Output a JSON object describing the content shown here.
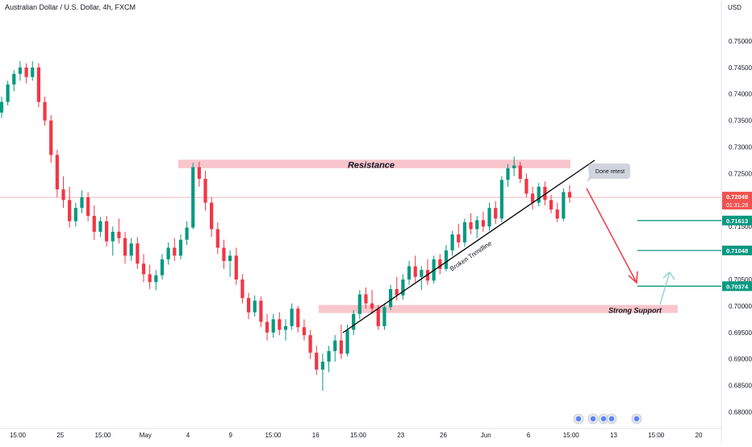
{
  "chart_data": {
    "type": "candlestick",
    "title": "Australian Dollar / U.S. Dollar, 4h, FXCM",
    "currency_label": "USD",
    "ylim": [
      0.6775,
      0.755
    ],
    "y_ticks": [
      0.75,
      0.745,
      0.74,
      0.735,
      0.73,
      0.725,
      0.72,
      0.715,
      0.71,
      0.705,
      0.7,
      0.695,
      0.69,
      0.685,
      0.68
    ],
    "y_tick_labels": [
      "0.75000",
      "0.74500",
      "0.74000",
      "0.73500",
      "0.73000",
      "0.72500",
      "0.72000",
      "0.71500",
      "0.71000",
      "0.70500",
      "0.70000",
      "0.69500",
      "0.69000",
      "0.68500",
      "0.68000"
    ],
    "x_tick_labels": [
      "15:00",
      "25",
      "15:00",
      "May",
      "4",
      "9",
      "15:00",
      "16",
      "15:00",
      "23",
      "26",
      "Jun",
      "6",
      "15:00",
      "13",
      "15:00",
      "20"
    ],
    "last_price": {
      "value": 0.72049,
      "label": "0.72049",
      "countdown": "01:31:28",
      "color": "#ef5350"
    },
    "price_levels": [
      {
        "value": 0.71613,
        "label": "0.71613",
        "color": "#089981"
      },
      {
        "value": 0.71048,
        "label": "0.71048",
        "color": "#089981"
      },
      {
        "value": 0.70374,
        "label": "0.70374",
        "color": "#089981"
      }
    ],
    "zones": [
      {
        "label": "Resistance",
        "low": 0.726,
        "high": 0.7276
      },
      {
        "label": "Strong Support",
        "low": 0.6988,
        "high": 0.7002
      }
    ],
    "trendline_label": "Broken Trendline",
    "callout_label": "Done retest",
    "up_color": "#089981",
    "down_color": "#f23645",
    "zone_color": "#f7bcc3",
    "ohlc": [
      {
        "o": 0.7365,
        "h": 0.7395,
        "l": 0.7355,
        "c": 0.7385
      },
      {
        "o": 0.7385,
        "h": 0.7425,
        "l": 0.7378,
        "c": 0.7418
      },
      {
        "o": 0.7418,
        "h": 0.7445,
        "l": 0.7405,
        "c": 0.7438
      },
      {
        "o": 0.7438,
        "h": 0.7462,
        "l": 0.7425,
        "c": 0.745
      },
      {
        "o": 0.745,
        "h": 0.7458,
        "l": 0.742,
        "c": 0.7432
      },
      {
        "o": 0.7432,
        "h": 0.7462,
        "l": 0.7425,
        "c": 0.745
      },
      {
        "o": 0.745,
        "h": 0.7458,
        "l": 0.7375,
        "c": 0.7385
      },
      {
        "o": 0.7385,
        "h": 0.7395,
        "l": 0.734,
        "c": 0.735
      },
      {
        "o": 0.735,
        "h": 0.736,
        "l": 0.727,
        "c": 0.7285
      },
      {
        "o": 0.7285,
        "h": 0.7295,
        "l": 0.7205,
        "c": 0.722
      },
      {
        "o": 0.722,
        "h": 0.7245,
        "l": 0.7185,
        "c": 0.72
      },
      {
        "o": 0.72,
        "h": 0.7225,
        "l": 0.7148,
        "c": 0.716
      },
      {
        "o": 0.716,
        "h": 0.7195,
        "l": 0.715,
        "c": 0.7185
      },
      {
        "o": 0.7185,
        "h": 0.7218,
        "l": 0.7175,
        "c": 0.7205
      },
      {
        "o": 0.7205,
        "h": 0.7215,
        "l": 0.716,
        "c": 0.717
      },
      {
        "o": 0.717,
        "h": 0.719,
        "l": 0.7125,
        "c": 0.714
      },
      {
        "o": 0.714,
        "h": 0.7168,
        "l": 0.713,
        "c": 0.716
      },
      {
        "o": 0.716,
        "h": 0.717,
        "l": 0.7112,
        "c": 0.7122
      },
      {
        "o": 0.7122,
        "h": 0.715,
        "l": 0.7095,
        "c": 0.714
      },
      {
        "o": 0.714,
        "h": 0.7165,
        "l": 0.7118,
        "c": 0.7128
      },
      {
        "o": 0.7128,
        "h": 0.714,
        "l": 0.708,
        "c": 0.7095
      },
      {
        "o": 0.7095,
        "h": 0.7128,
        "l": 0.7085,
        "c": 0.7118
      },
      {
        "o": 0.7118,
        "h": 0.713,
        "l": 0.707,
        "c": 0.708
      },
      {
        "o": 0.708,
        "h": 0.7098,
        "l": 0.7045,
        "c": 0.706
      },
      {
        "o": 0.706,
        "h": 0.7078,
        "l": 0.7032,
        "c": 0.7045
      },
      {
        "o": 0.7045,
        "h": 0.7068,
        "l": 0.703,
        "c": 0.7058
      },
      {
        "o": 0.7058,
        "h": 0.7098,
        "l": 0.705,
        "c": 0.7088
      },
      {
        "o": 0.7088,
        "h": 0.712,
        "l": 0.7078,
        "c": 0.711
      },
      {
        "o": 0.711,
        "h": 0.7128,
        "l": 0.7085,
        "c": 0.7095
      },
      {
        "o": 0.7095,
        "h": 0.7135,
        "l": 0.7088,
        "c": 0.7125
      },
      {
        "o": 0.7125,
        "h": 0.716,
        "l": 0.7115,
        "c": 0.7148
      },
      {
        "o": 0.7148,
        "h": 0.727,
        "l": 0.7145,
        "c": 0.7262
      },
      {
        "o": 0.7262,
        "h": 0.7272,
        "l": 0.7225,
        "c": 0.724
      },
      {
        "o": 0.724,
        "h": 0.7255,
        "l": 0.718,
        "c": 0.7195
      },
      {
        "o": 0.7195,
        "h": 0.7205,
        "l": 0.713,
        "c": 0.7145
      },
      {
        "o": 0.7145,
        "h": 0.7158,
        "l": 0.7098,
        "c": 0.711
      },
      {
        "o": 0.711,
        "h": 0.7125,
        "l": 0.707,
        "c": 0.7085
      },
      {
        "o": 0.7085,
        "h": 0.7105,
        "l": 0.7055,
        "c": 0.7095
      },
      {
        "o": 0.7095,
        "h": 0.711,
        "l": 0.704,
        "c": 0.705
      },
      {
        "o": 0.705,
        "h": 0.706,
        "l": 0.7005,
        "c": 0.7015
      },
      {
        "o": 0.7015,
        "h": 0.7025,
        "l": 0.6975,
        "c": 0.6988
      },
      {
        "o": 0.6988,
        "h": 0.702,
        "l": 0.698,
        "c": 0.701
      },
      {
        "o": 0.701,
        "h": 0.7018,
        "l": 0.696,
        "c": 0.697
      },
      {
        "o": 0.697,
        "h": 0.6985,
        "l": 0.6935,
        "c": 0.695
      },
      {
        "o": 0.695,
        "h": 0.6985,
        "l": 0.694,
        "c": 0.6975
      },
      {
        "o": 0.6975,
        "h": 0.6988,
        "l": 0.6945,
        "c": 0.6955
      },
      {
        "o": 0.6955,
        "h": 0.6975,
        "l": 0.6935,
        "c": 0.6962
      },
      {
        "o": 0.6962,
        "h": 0.7005,
        "l": 0.6955,
        "c": 0.6995
      },
      {
        "o": 0.6995,
        "h": 0.7,
        "l": 0.695,
        "c": 0.696
      },
      {
        "o": 0.696,
        "h": 0.6975,
        "l": 0.6935,
        "c": 0.6945
      },
      {
        "o": 0.6945,
        "h": 0.6955,
        "l": 0.69,
        "c": 0.6912
      },
      {
        "o": 0.6912,
        "h": 0.6925,
        "l": 0.687,
        "c": 0.688
      },
      {
        "o": 0.688,
        "h": 0.691,
        "l": 0.684,
        "c": 0.6895
      },
      {
        "o": 0.6895,
        "h": 0.6925,
        "l": 0.6875,
        "c": 0.6915
      },
      {
        "o": 0.6915,
        "h": 0.6945,
        "l": 0.6895,
        "c": 0.6935
      },
      {
        "o": 0.6935,
        "h": 0.6965,
        "l": 0.69,
        "c": 0.691
      },
      {
        "o": 0.691,
        "h": 0.6965,
        "l": 0.6905,
        "c": 0.6955
      },
      {
        "o": 0.6955,
        "h": 0.6992,
        "l": 0.6945,
        "c": 0.6985
      },
      {
        "o": 0.6985,
        "h": 0.703,
        "l": 0.6975,
        "c": 0.7022
      },
      {
        "o": 0.7022,
        "h": 0.7035,
        "l": 0.6995,
        "c": 0.7005
      },
      {
        "o": 0.7005,
        "h": 0.703,
        "l": 0.6985,
        "c": 0.6995
      },
      {
        "o": 0.6995,
        "h": 0.7002,
        "l": 0.6955,
        "c": 0.6962
      },
      {
        "o": 0.6962,
        "h": 0.7005,
        "l": 0.6955,
        "c": 0.6998
      },
      {
        "o": 0.6998,
        "h": 0.704,
        "l": 0.6992,
        "c": 0.7032
      },
      {
        "o": 0.7032,
        "h": 0.7055,
        "l": 0.701,
        "c": 0.702
      },
      {
        "o": 0.702,
        "h": 0.706,
        "l": 0.7012,
        "c": 0.705
      },
      {
        "o": 0.705,
        "h": 0.7085,
        "l": 0.704,
        "c": 0.7075
      },
      {
        "o": 0.7075,
        "h": 0.7095,
        "l": 0.7045,
        "c": 0.7055
      },
      {
        "o": 0.7055,
        "h": 0.7075,
        "l": 0.703,
        "c": 0.7068
      },
      {
        "o": 0.7068,
        "h": 0.7088,
        "l": 0.704,
        "c": 0.7048
      },
      {
        "o": 0.7048,
        "h": 0.7095,
        "l": 0.7042,
        "c": 0.7088
      },
      {
        "o": 0.7088,
        "h": 0.7098,
        "l": 0.706,
        "c": 0.707
      },
      {
        "o": 0.707,
        "h": 0.7115,
        "l": 0.7065,
        "c": 0.7105
      },
      {
        "o": 0.7105,
        "h": 0.7142,
        "l": 0.7095,
        "c": 0.7135
      },
      {
        "o": 0.7135,
        "h": 0.7155,
        "l": 0.711,
        "c": 0.712
      },
      {
        "o": 0.712,
        "h": 0.7165,
        "l": 0.7112,
        "c": 0.7158
      },
      {
        "o": 0.7158,
        "h": 0.7175,
        "l": 0.7135,
        "c": 0.7145
      },
      {
        "o": 0.7145,
        "h": 0.717,
        "l": 0.7128,
        "c": 0.7162
      },
      {
        "o": 0.7162,
        "h": 0.7178,
        "l": 0.714,
        "c": 0.715
      },
      {
        "o": 0.715,
        "h": 0.7195,
        "l": 0.7142,
        "c": 0.7185
      },
      {
        "o": 0.7185,
        "h": 0.7198,
        "l": 0.7155,
        "c": 0.7165
      },
      {
        "o": 0.7165,
        "h": 0.7245,
        "l": 0.7158,
        "c": 0.7238
      },
      {
        "o": 0.7238,
        "h": 0.7268,
        "l": 0.7225,
        "c": 0.726
      },
      {
        "o": 0.726,
        "h": 0.7282,
        "l": 0.7245,
        "c": 0.7265
      },
      {
        "o": 0.7265,
        "h": 0.7272,
        "l": 0.7232,
        "c": 0.724
      },
      {
        "o": 0.724,
        "h": 0.725,
        "l": 0.7205,
        "c": 0.7212
      },
      {
        "o": 0.7212,
        "h": 0.7225,
        "l": 0.7182,
        "c": 0.7195
      },
      {
        "o": 0.7195,
        "h": 0.7232,
        "l": 0.7188,
        "c": 0.7225
      },
      {
        "o": 0.7225,
        "h": 0.7235,
        "l": 0.719,
        "c": 0.72
      },
      {
        "o": 0.72,
        "h": 0.721,
        "l": 0.7175,
        "c": 0.7182
      },
      {
        "o": 0.7182,
        "h": 0.7195,
        "l": 0.7158,
        "c": 0.7165
      },
      {
        "o": 0.7165,
        "h": 0.7222,
        "l": 0.716,
        "c": 0.7215
      },
      {
        "o": 0.7215,
        "h": 0.7228,
        "l": 0.7195,
        "c": 0.7205
      }
    ]
  }
}
